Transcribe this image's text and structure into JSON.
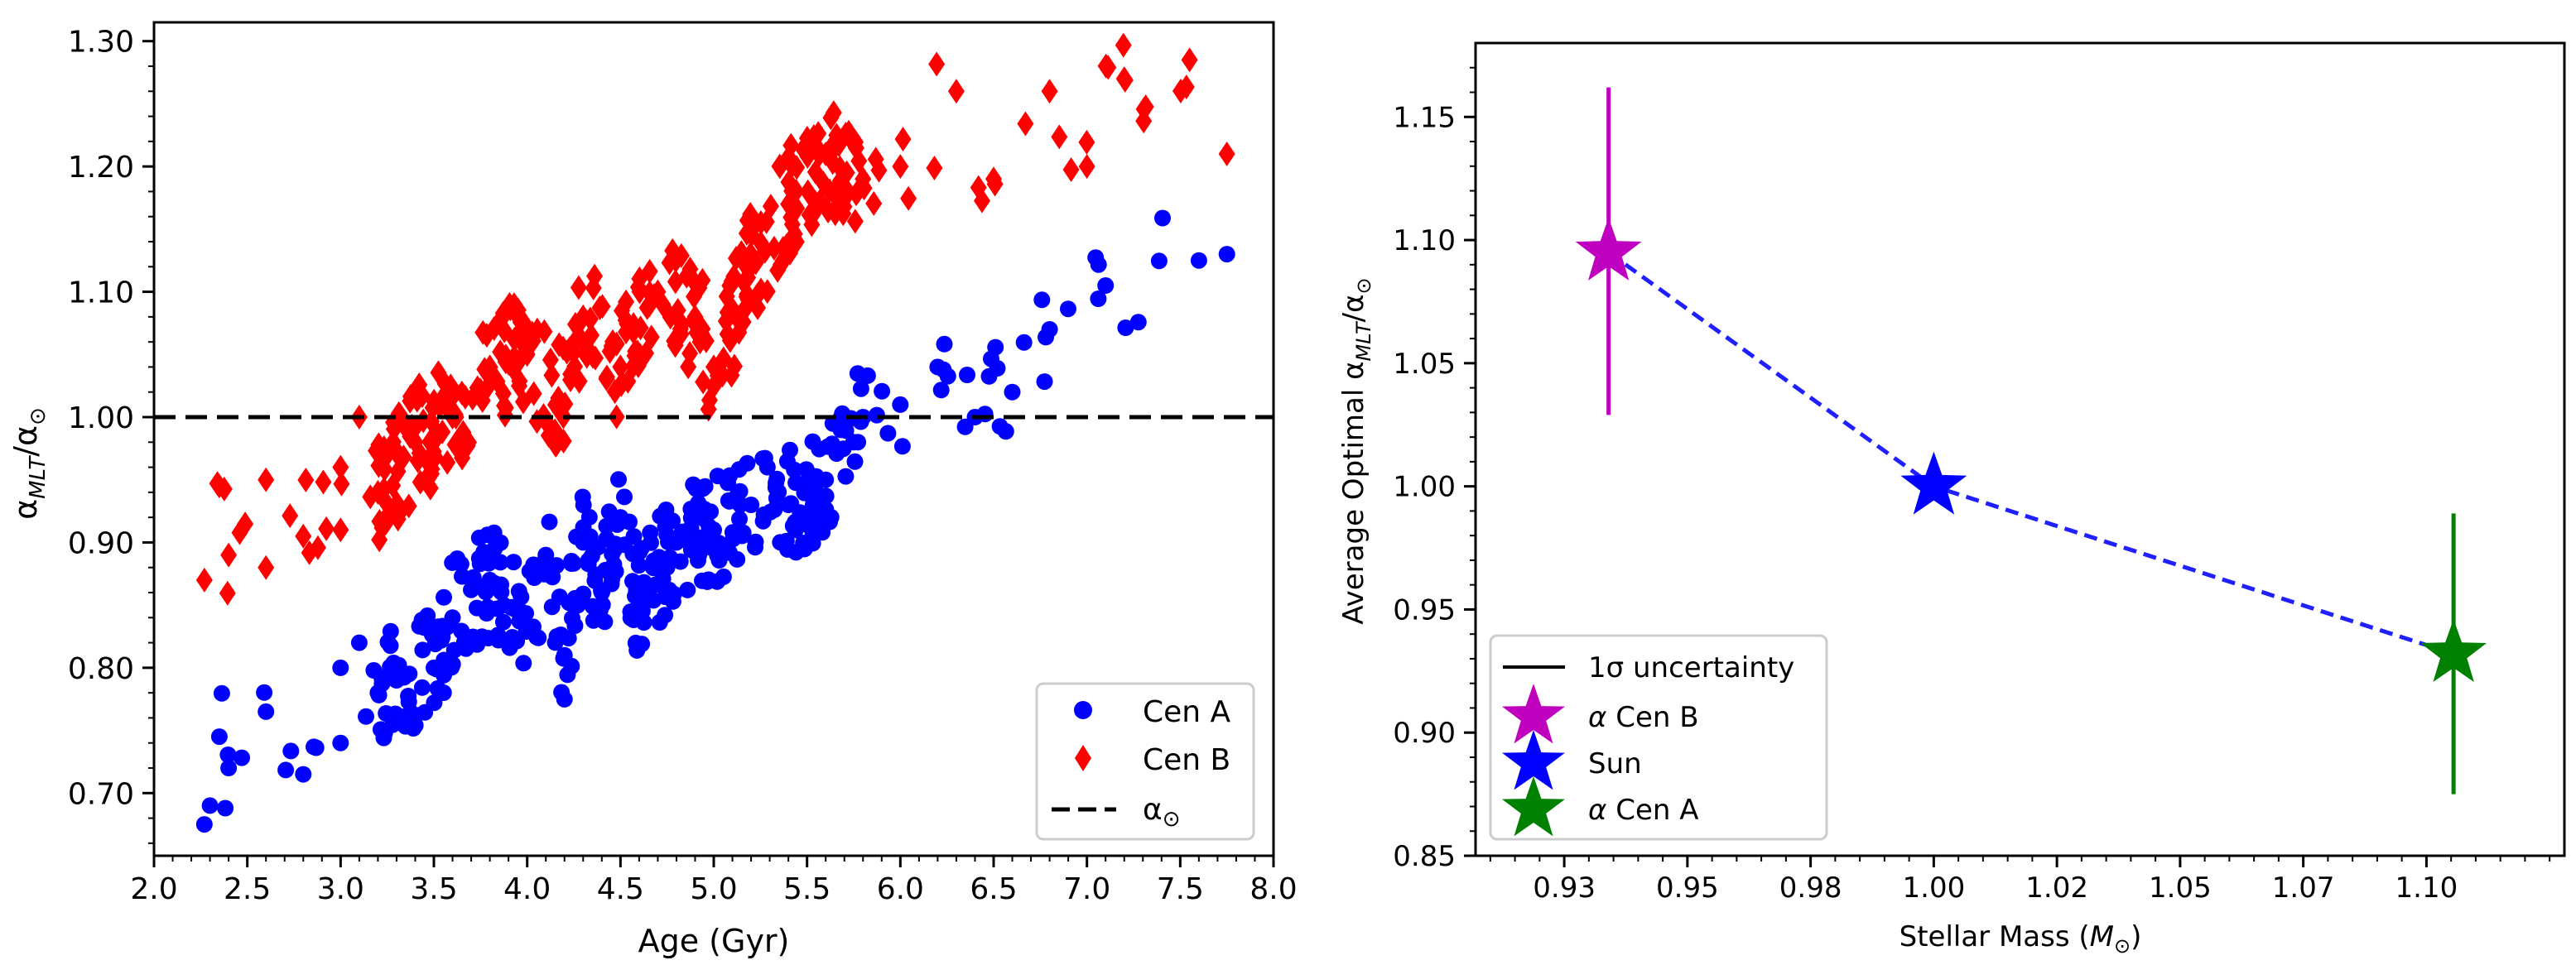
{
  "chart_data": [
    {
      "type": "scatter",
      "xlabel": "Age (Gyr)",
      "ylabel_base": "α",
      "ylabel_sub": "MLT",
      "ylabel_rest": "/α",
      "ylabel_sun": "⊙",
      "xlim": [
        2.0,
        8.0
      ],
      "ylim": [
        0.65,
        1.315
      ],
      "xticks": [
        "2.0",
        "2.5",
        "3.0",
        "3.5",
        "4.0",
        "4.5",
        "5.0",
        "5.5",
        "6.0",
        "6.5",
        "7.0",
        "7.5",
        "8.0"
      ],
      "yticks": [
        "0.70",
        "0.80",
        "0.90",
        "1.00",
        "1.10",
        "1.20",
        "1.30"
      ],
      "reference_line": {
        "y": 1.0,
        "label_base": "α",
        "label_sub": "⊙",
        "color": "#000000"
      },
      "legend": {
        "placement": "lower-right",
        "entries": [
          "Cen A",
          "Cen B"
        ]
      },
      "series": [
        {
          "name": "Cen A",
          "marker": "circle",
          "color": "#0000ff",
          "anchors": [
            [
              2.27,
              0.675
            ],
            [
              2.3,
              0.69
            ],
            [
              2.35,
              0.745
            ],
            [
              2.4,
              0.72
            ],
            [
              2.6,
              0.765
            ],
            [
              2.8,
              0.715
            ],
            [
              3.0,
              0.74
            ],
            [
              3.0,
              0.8
            ],
            [
              3.1,
              0.82
            ],
            [
              3.2,
              0.78
            ],
            [
              3.3,
              0.79
            ],
            [
              3.5,
              0.8
            ],
            [
              3.6,
              0.84
            ],
            [
              3.8,
              0.87
            ],
            [
              4.0,
              0.83
            ],
            [
              4.1,
              0.89
            ],
            [
              4.2,
              0.81
            ],
            [
              4.3,
              0.9
            ],
            [
              4.4,
              0.86
            ],
            [
              4.5,
              0.92
            ],
            [
              4.6,
              0.85
            ],
            [
              4.8,
              0.9
            ],
            [
              5.0,
              0.91
            ],
            [
              5.2,
              0.93
            ],
            [
              5.4,
              0.93
            ],
            [
              5.6,
              0.95
            ],
            [
              5.8,
              1.0
            ],
            [
              6.0,
              1.01
            ],
            [
              6.2,
              1.04
            ],
            [
              6.4,
              1.0
            ],
            [
              6.6,
              1.02
            ],
            [
              6.8,
              1.07
            ],
            [
              7.1,
              1.105
            ],
            [
              7.6,
              1.125
            ],
            [
              7.75,
              1.13
            ]
          ],
          "n": 420
        },
        {
          "name": "Cen B",
          "marker": "diamond",
          "color": "#ff0000",
          "anchors": [
            [
              2.27,
              0.87
            ],
            [
              2.35,
              0.945
            ],
            [
              2.4,
              0.89
            ],
            [
              2.6,
              0.95
            ],
            [
              2.6,
              0.88
            ],
            [
              2.8,
              0.905
            ],
            [
              3.0,
              0.96
            ],
            [
              3.0,
              0.91
            ],
            [
              3.1,
              1.0
            ],
            [
              3.2,
              0.94
            ],
            [
              3.4,
              0.98
            ],
            [
              3.6,
              1.0
            ],
            [
              3.8,
              1.04
            ],
            [
              4.0,
              1.05
            ],
            [
              4.2,
              1.01
            ],
            [
              4.3,
              1.08
            ],
            [
              4.5,
              1.04
            ],
            [
              4.7,
              1.1
            ],
            [
              4.9,
              1.08
            ],
            [
              5.0,
              1.04
            ],
            [
              5.2,
              1.12
            ],
            [
              5.4,
              1.17
            ],
            [
              5.6,
              1.21
            ],
            [
              5.8,
              1.19
            ],
            [
              6.0,
              1.2
            ],
            [
              6.3,
              1.26
            ],
            [
              6.5,
              1.19
            ],
            [
              6.8,
              1.26
            ],
            [
              7.0,
              1.2
            ],
            [
              7.2,
              1.27
            ],
            [
              7.55,
              1.285
            ],
            [
              7.75,
              1.21
            ]
          ],
          "n": 420
        }
      ]
    },
    {
      "type": "line",
      "xlabel_base": "Stellar Mass (",
      "xlabel_var": "M",
      "xlabel_sun": "⊙",
      "xlabel_end": ")",
      "ylabel_base": "Average Optimal α",
      "ylabel_sub": "MLT",
      "ylabel_rest": "/α",
      "ylabel_sun": "⊙",
      "xlim": [
        0.907,
        1.128
      ],
      "ylim": [
        0.85,
        1.18
      ],
      "xticks": [
        {
          "v": 0.925,
          "label": "0.93"
        },
        {
          "v": 0.95,
          "label": "0.95"
        },
        {
          "v": 0.975,
          "label": "0.98"
        },
        {
          "v": 1.0,
          "label": "1.00"
        },
        {
          "v": 1.025,
          "label": "1.02"
        },
        {
          "v": 1.05,
          "label": "1.05"
        },
        {
          "v": 1.075,
          "label": "1.07"
        },
        {
          "v": 1.1,
          "label": "1.10"
        }
      ],
      "yticks": [
        "0.85",
        "0.90",
        "0.95",
        "1.00",
        "1.05",
        "1.10",
        "1.15"
      ],
      "line": {
        "style": "dashed",
        "color": "#1f1fff"
      },
      "points": [
        {
          "name": "α Cen B",
          "label_greek": "α",
          "label_rest": " Cen B",
          "x": 0.934,
          "y": 1.095,
          "err_low": 1.029,
          "err_high": 1.162,
          "color": "#bf00bf"
        },
        {
          "name": "Sun",
          "label_greek": "",
          "label_rest": "Sun",
          "x": 1.0,
          "y": 1.0,
          "err_low": null,
          "err_high": null,
          "color": "#0000ff"
        },
        {
          "name": "α Cen A",
          "label_greek": "α",
          "label_rest": " Cen A",
          "x": 1.1055,
          "y": 0.932,
          "err_low": 0.875,
          "err_high": 0.989,
          "color": "#008000"
        }
      ],
      "legend": {
        "placement": "lower-left",
        "uncertainty_label": "1σ uncertainty"
      }
    }
  ]
}
